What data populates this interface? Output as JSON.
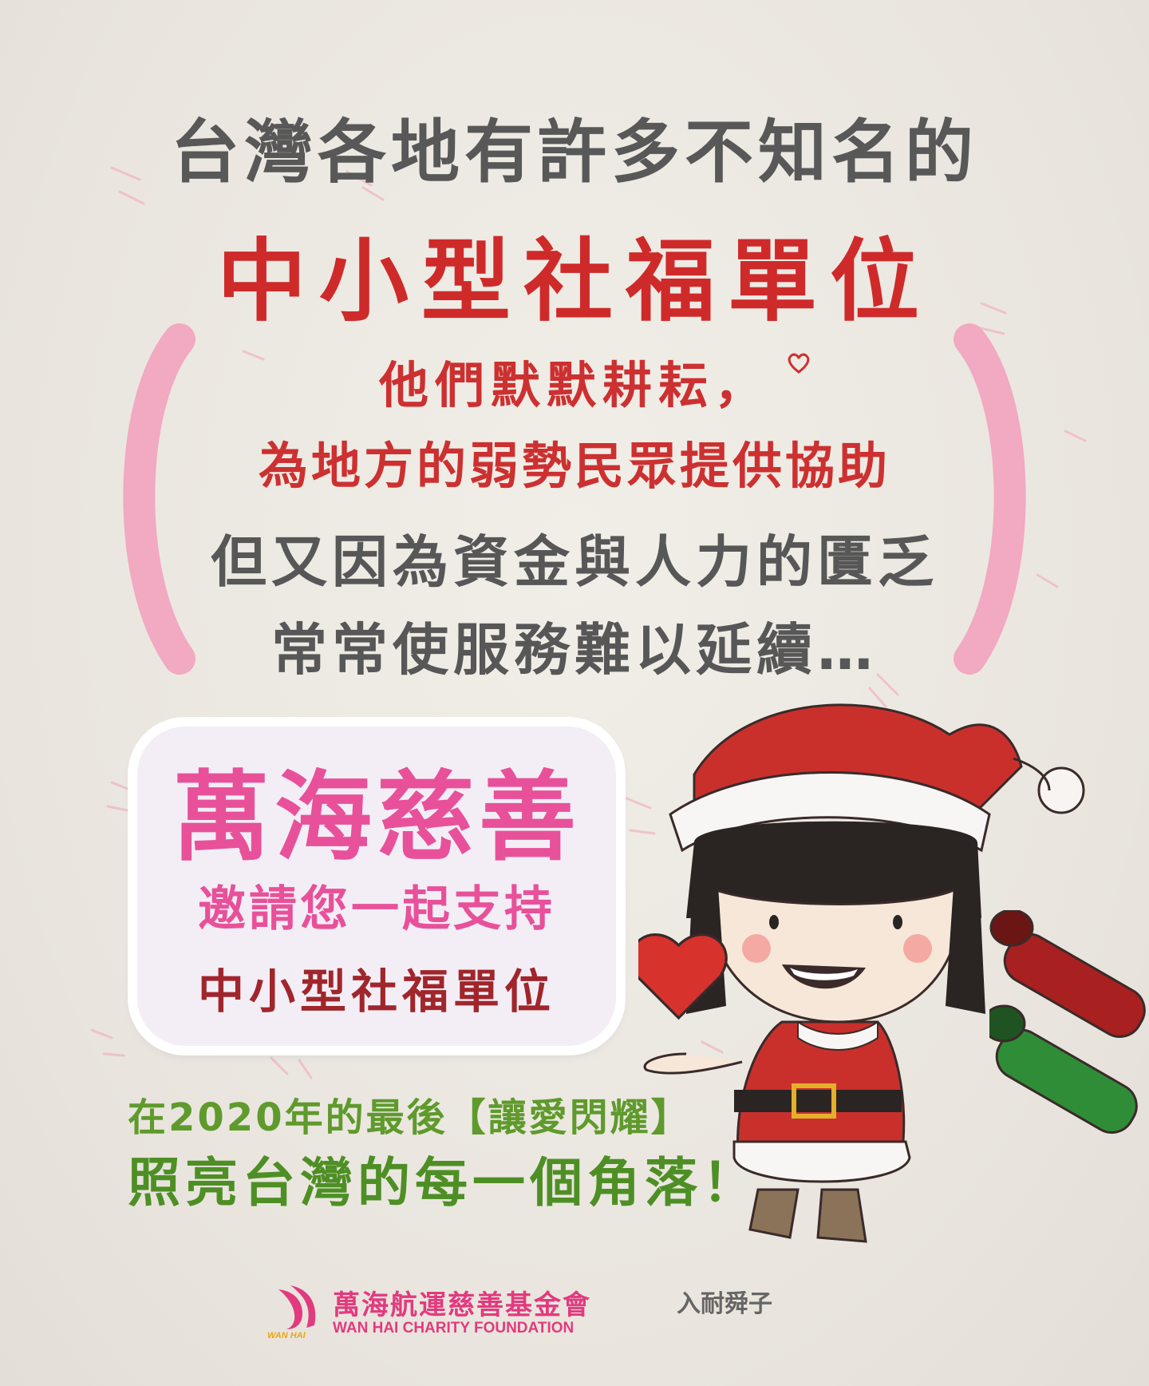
{
  "poster": {
    "line1": "台灣各地有許多不知名的",
    "line2": "中小型社福單位",
    "line3": "他們默默耕耘，",
    "line4": "為地方的弱勢民眾提供協助",
    "line5": "但又因為資金與人力的匱乏",
    "line6": "常常使服務難以延續…"
  },
  "badge": {
    "title": "萬海慈善",
    "subtitle": "邀請您一起支持",
    "target": "中小型社福單位"
  },
  "closing": {
    "line1": "在2020年的最後【讓愛閃耀】",
    "line2": "照亮台灣的每一個角落！"
  },
  "footer": {
    "logo_zh": "萬海航運慈善基金會",
    "logo_en": "WAN HAI CHARITY FOUNDATION",
    "logo_mark": "WAN HAI",
    "signature": "入耐舜子"
  },
  "colors": {
    "red": "#cf2a2a",
    "gray": "#575757",
    "pink": "#e8519a",
    "green": "#4e8f25",
    "bracket_pink": "#f2a9c2"
  }
}
